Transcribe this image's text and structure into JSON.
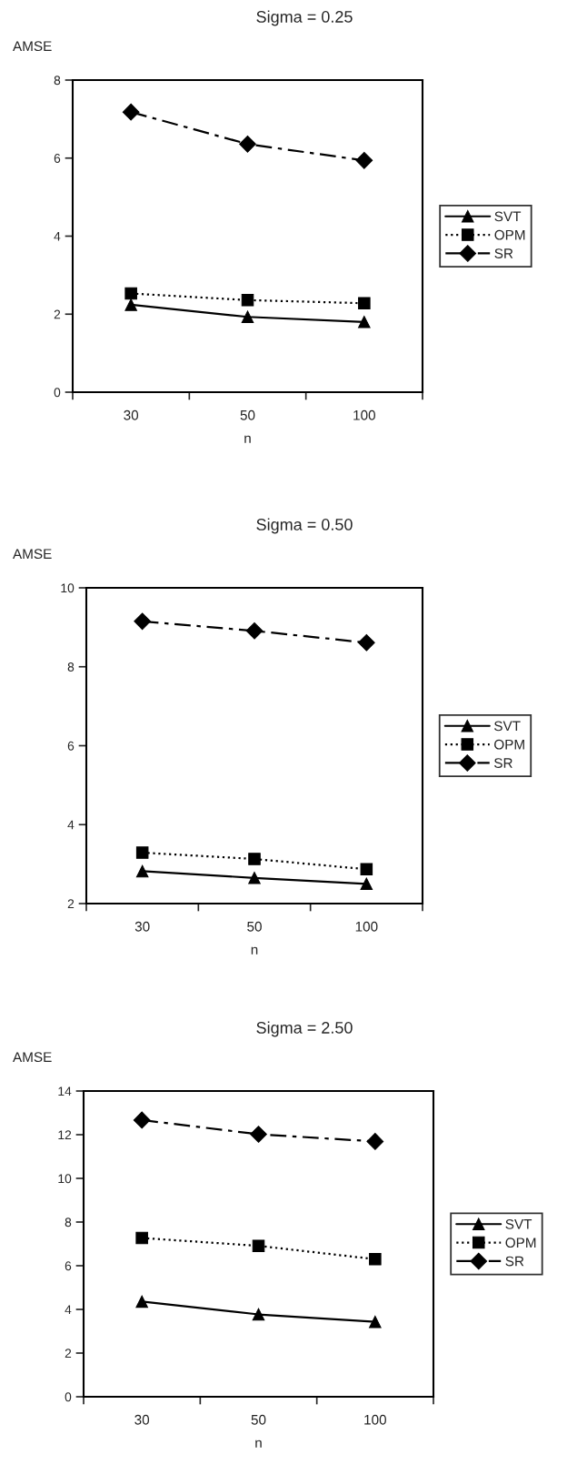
{
  "chart_data": [
    {
      "type": "line",
      "title": "Sigma = 0.25",
      "xlabel": "n",
      "ylabel": "AMSE",
      "categories": [
        "30",
        "50",
        "100"
      ],
      "ylim": [
        0,
        8
      ],
      "yticks": [
        0,
        2,
        4,
        6,
        8
      ],
      "grid": false,
      "legend": "right",
      "series": [
        {
          "name": "SVT",
          "color": "#000000",
          "marker": "triangle",
          "line_style": "solid",
          "values": [
            2.24,
            1.93,
            1.8
          ]
        },
        {
          "name": "OPM",
          "color": "#000000",
          "marker": "square",
          "line_style": "dotted",
          "values": [
            2.53,
            2.36,
            2.28
          ]
        },
        {
          "name": "SR",
          "color": "#000000",
          "marker": "diamond",
          "line_style": "dashed",
          "values": [
            7.18,
            6.36,
            5.94
          ]
        }
      ]
    },
    {
      "type": "line",
      "title": "Sigma = 0.50",
      "xlabel": "n",
      "ylabel": "AMSE",
      "categories": [
        "30",
        "50",
        "100"
      ],
      "ylim": [
        2,
        10
      ],
      "yticks": [
        2,
        4,
        6,
        8,
        10
      ],
      "grid": false,
      "legend": "right",
      "series": [
        {
          "name": "SVT",
          "color": "#000000",
          "marker": "triangle",
          "line_style": "solid",
          "values": [
            2.82,
            2.65,
            2.5
          ]
        },
        {
          "name": "OPM",
          "color": "#000000",
          "marker": "square",
          "line_style": "dotted",
          "values": [
            3.29,
            3.13,
            2.87
          ]
        },
        {
          "name": "SR",
          "color": "#000000",
          "marker": "diamond",
          "line_style": "dashed",
          "values": [
            9.15,
            8.91,
            8.61
          ]
        }
      ]
    },
    {
      "type": "line",
      "title": "Sigma = 2.50",
      "xlabel": "n",
      "ylabel": "AMSE",
      "categories": [
        "30",
        "50",
        "100"
      ],
      "ylim": [
        0,
        14
      ],
      "yticks": [
        0,
        2,
        4,
        6,
        8,
        10,
        12,
        14
      ],
      "grid": false,
      "legend": "right",
      "series": [
        {
          "name": "SVT",
          "color": "#000000",
          "marker": "triangle",
          "line_style": "solid",
          "values": [
            4.36,
            3.77,
            3.43
          ]
        },
        {
          "name": "OPM",
          "color": "#000000",
          "marker": "square",
          "line_style": "dotted",
          "values": [
            7.27,
            6.91,
            6.3
          ]
        },
        {
          "name": "SR",
          "color": "#000000",
          "marker": "diamond",
          "line_style": "dashed",
          "values": [
            12.67,
            12.02,
            11.69
          ]
        }
      ]
    }
  ]
}
